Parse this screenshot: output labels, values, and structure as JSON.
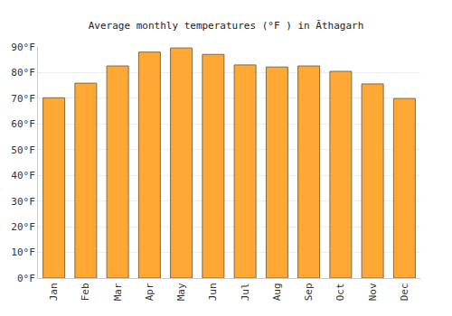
{
  "chart_data": {
    "type": "bar",
    "title": "Average monthly temperatures (°F ) in Āthagarh",
    "categories": [
      "Jan",
      "Feb",
      "Mar",
      "Apr",
      "May",
      "Jun",
      "Jul",
      "Aug",
      "Sep",
      "Oct",
      "Nov",
      "Dec"
    ],
    "values": [
      70.2,
      75.9,
      82.6,
      88.0,
      89.6,
      87.1,
      83.0,
      82.2,
      82.6,
      80.5,
      75.6,
      69.9
    ],
    "color": "#ffa833",
    "ylim": [
      0,
      90
    ],
    "yticks": [
      {
        "value": 0,
        "label": "0°F"
      },
      {
        "value": 10,
        "label": "10°F"
      },
      {
        "value": 20,
        "label": "20°F"
      },
      {
        "value": 30,
        "label": "30°F"
      },
      {
        "value": 40,
        "label": "40°F"
      },
      {
        "value": 50,
        "label": "50°F"
      },
      {
        "value": 60,
        "label": "60°F"
      },
      {
        "value": 70,
        "label": "70°F"
      },
      {
        "value": 80,
        "label": "80°F"
      },
      {
        "value": 90,
        "label": "90°F"
      }
    ],
    "grid": true
  }
}
